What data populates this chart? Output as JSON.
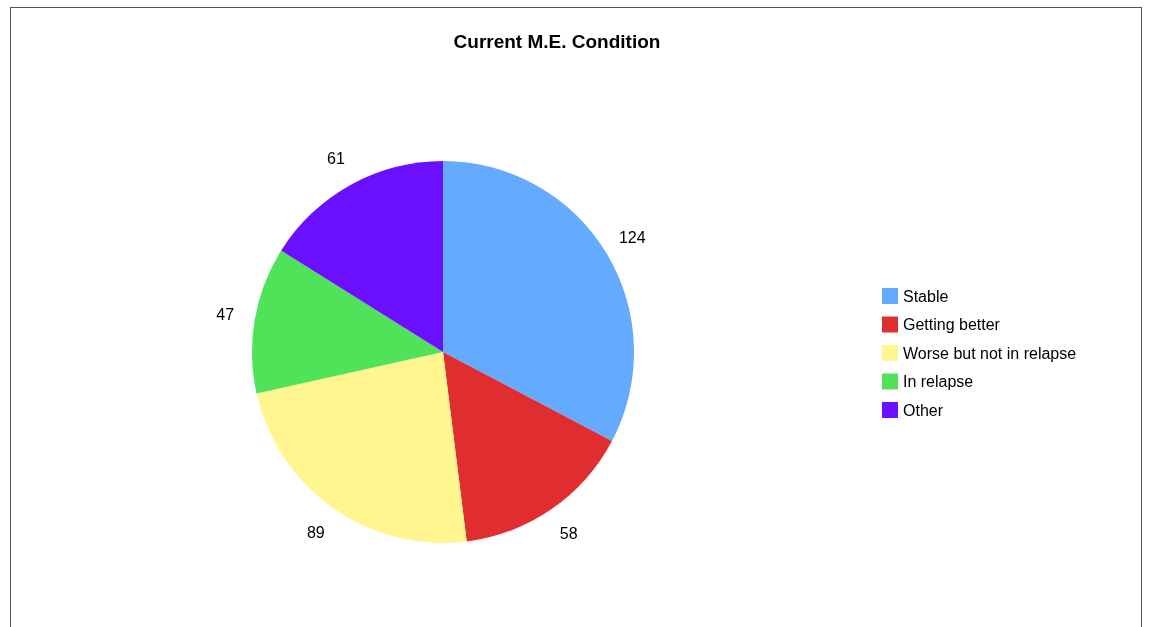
{
  "chart_data": {
    "type": "pie",
    "title": "Current M.E. Condition",
    "categories": [
      "Stable",
      "Getting better",
      "Worse but not in relapse",
      "In relapse",
      "Other"
    ],
    "values": [
      124,
      58,
      89,
      47,
      61
    ],
    "colors": [
      "#64aaff",
      "#e02e30",
      "#fff68f",
      "#50e35a",
      "#6a10ff"
    ],
    "data_labels": true,
    "legend": "right"
  }
}
